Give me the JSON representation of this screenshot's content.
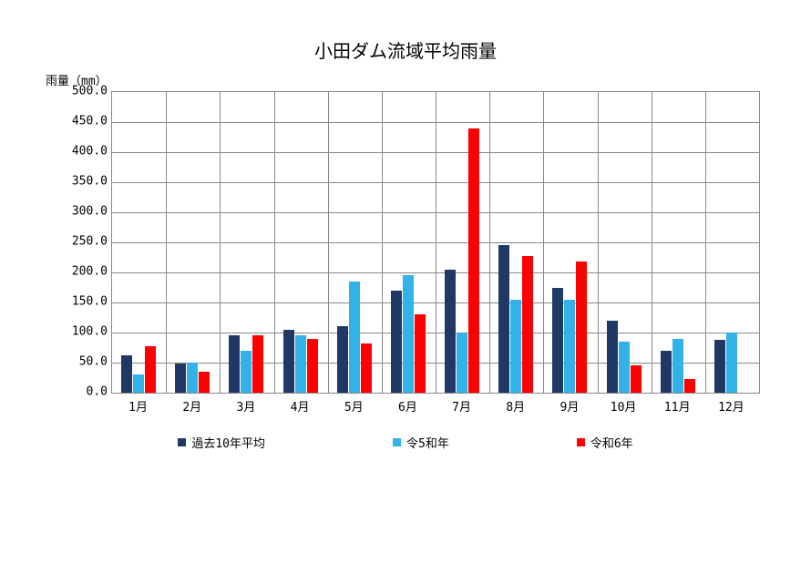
{
  "chart": {
    "type": "bar",
    "title": "小田ダム流域平均雨量",
    "y_axis_title": "雨量（mm）",
    "title_fontsize": 20,
    "label_fontsize": 13,
    "background_color": "#ffffff",
    "grid_color": "#888888",
    "border_color": "#888888",
    "ylim_min": 0,
    "ylim_max": 500,
    "ytick_step": 50,
    "y_ticks": [
      "0.0",
      "50.0",
      "100.0",
      "150.0",
      "200.0",
      "250.0",
      "300.0",
      "350.0",
      "400.0",
      "450.0",
      "500.0"
    ],
    "categories": [
      "1月",
      "2月",
      "3月",
      "4月",
      "5月",
      "6月",
      "7月",
      "8月",
      "9月",
      "10月",
      "11月",
      "12月"
    ],
    "series": [
      {
        "name": "過去10年平均",
        "color": "#1f3864",
        "values": [
          62,
          48,
          95,
          105,
          110,
          170,
          205,
          245,
          175,
          120,
          70,
          88
        ]
      },
      {
        "name": "令5和年",
        "color": "#33b2e8",
        "values": [
          30,
          50,
          70,
          95,
          185,
          195,
          100,
          155,
          155,
          85,
          90,
          100
        ]
      },
      {
        "name": "令和6年",
        "color": "#ff0000",
        "values": [
          78,
          35,
          95,
          90,
          82,
          130,
          440,
          228,
          218,
          45,
          22,
          null
        ]
      }
    ],
    "bar_width_ratio": 0.22,
    "group_gap_ratio": 0.1
  }
}
